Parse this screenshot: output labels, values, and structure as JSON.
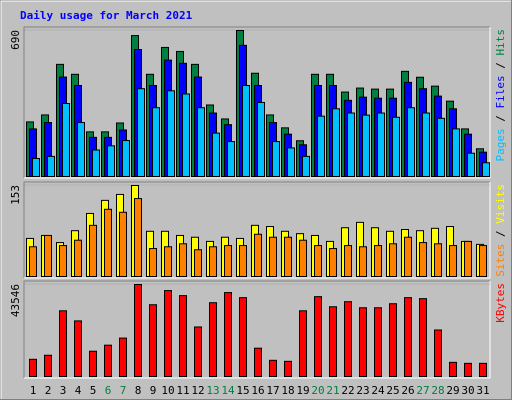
{
  "chart_data": [
    {
      "type": "bar",
      "title": "Daily usage for March 2021",
      "ylim": [
        0,
        690
      ],
      "yticks": [
        690
      ],
      "separator": " / ",
      "series": [
        {
          "name": "Hits",
          "color": "#008040",
          "values": [
            258,
            291,
            530,
            483,
            211,
            211,
            253,
            666,
            483,
            610,
            591,
            530,
            338,
            272,
            690,
            488,
            291,
            230,
            169,
            483,
            483,
            399,
            418,
            413,
            413,
            497,
            469,
            427,
            356,
            225,
            131
          ]
        },
        {
          "name": "Files",
          "color": "#0000ff",
          "values": [
            225,
            255,
            470,
            430,
            185,
            185,
            220,
            600,
            430,
            550,
            535,
            470,
            300,
            245,
            620,
            430,
            255,
            200,
            150,
            430,
            430,
            360,
            375,
            370,
            370,
            445,
            415,
            380,
            320,
            200,
            115
          ]
        },
        {
          "name": "Pages",
          "color": "#00c0ff",
          "values": [
            85,
            95,
            345,
            255,
            125,
            145,
            170,
            415,
            325,
            405,
            390,
            325,
            205,
            165,
            430,
            350,
            165,
            135,
            95,
            285,
            320,
            300,
            290,
            300,
            280,
            325,
            300,
            275,
            225,
            110,
            65
          ]
        }
      ]
    },
    {
      "type": "bar",
      "ylim": [
        0,
        153
      ],
      "yticks": [
        153
      ],
      "separator": " / ",
      "series": [
        {
          "name": "Visits",
          "color": "#ffff00",
          "values": [
            64,
            69,
            57,
            77,
            106,
            128,
            138,
            153,
            76,
            76,
            69,
            66,
            59,
            66,
            64,
            86,
            84,
            76,
            72,
            69,
            59,
            82,
            91,
            82,
            76,
            79,
            77,
            81,
            84,
            59,
            54
          ]
        },
        {
          "name": "Sites",
          "color": "#ff8000",
          "values": [
            50,
            69,
            52,
            61,
            86,
            113,
            108,
            131,
            47,
            50,
            55,
            45,
            50,
            52,
            52,
            71,
            66,
            66,
            61,
            52,
            47,
            52,
            50,
            52,
            55,
            66,
            57,
            55,
            52,
            59,
            52
          ]
        }
      ]
    },
    {
      "type": "bar",
      "ylim": [
        0,
        43546
      ],
      "yticks": [
        43546
      ],
      "separator": " / ",
      "categories": [
        "1",
        "2",
        "3",
        "4",
        "5",
        "6",
        "7",
        "8",
        "9",
        "10",
        "11",
        "12",
        "13",
        "14",
        "15",
        "16",
        "17",
        "18",
        "19",
        "20",
        "21",
        "22",
        "23",
        "24",
        "25",
        "26",
        "27",
        "28",
        "29",
        "30",
        "31"
      ],
      "category_color": "#000000",
      "weekend_color": "#008040",
      "weekend": [
        5,
        6,
        12,
        13,
        19,
        20,
        26,
        27
      ],
      "series": [
        {
          "name": "KBytes",
          "color": "#ff0000",
          "values": [
            8135,
            10050,
            31100,
            26320,
            11960,
            14830,
            18180,
            43546,
            33970,
            40670,
            38280,
            23450,
            34930,
            39720,
            37320,
            13400,
            7660,
            7180,
            31100,
            37800,
            33020,
            35410,
            32540,
            32540,
            34450,
            37320,
            36850,
            22010,
            6700,
            6220,
            6220
          ]
        }
      ]
    }
  ]
}
